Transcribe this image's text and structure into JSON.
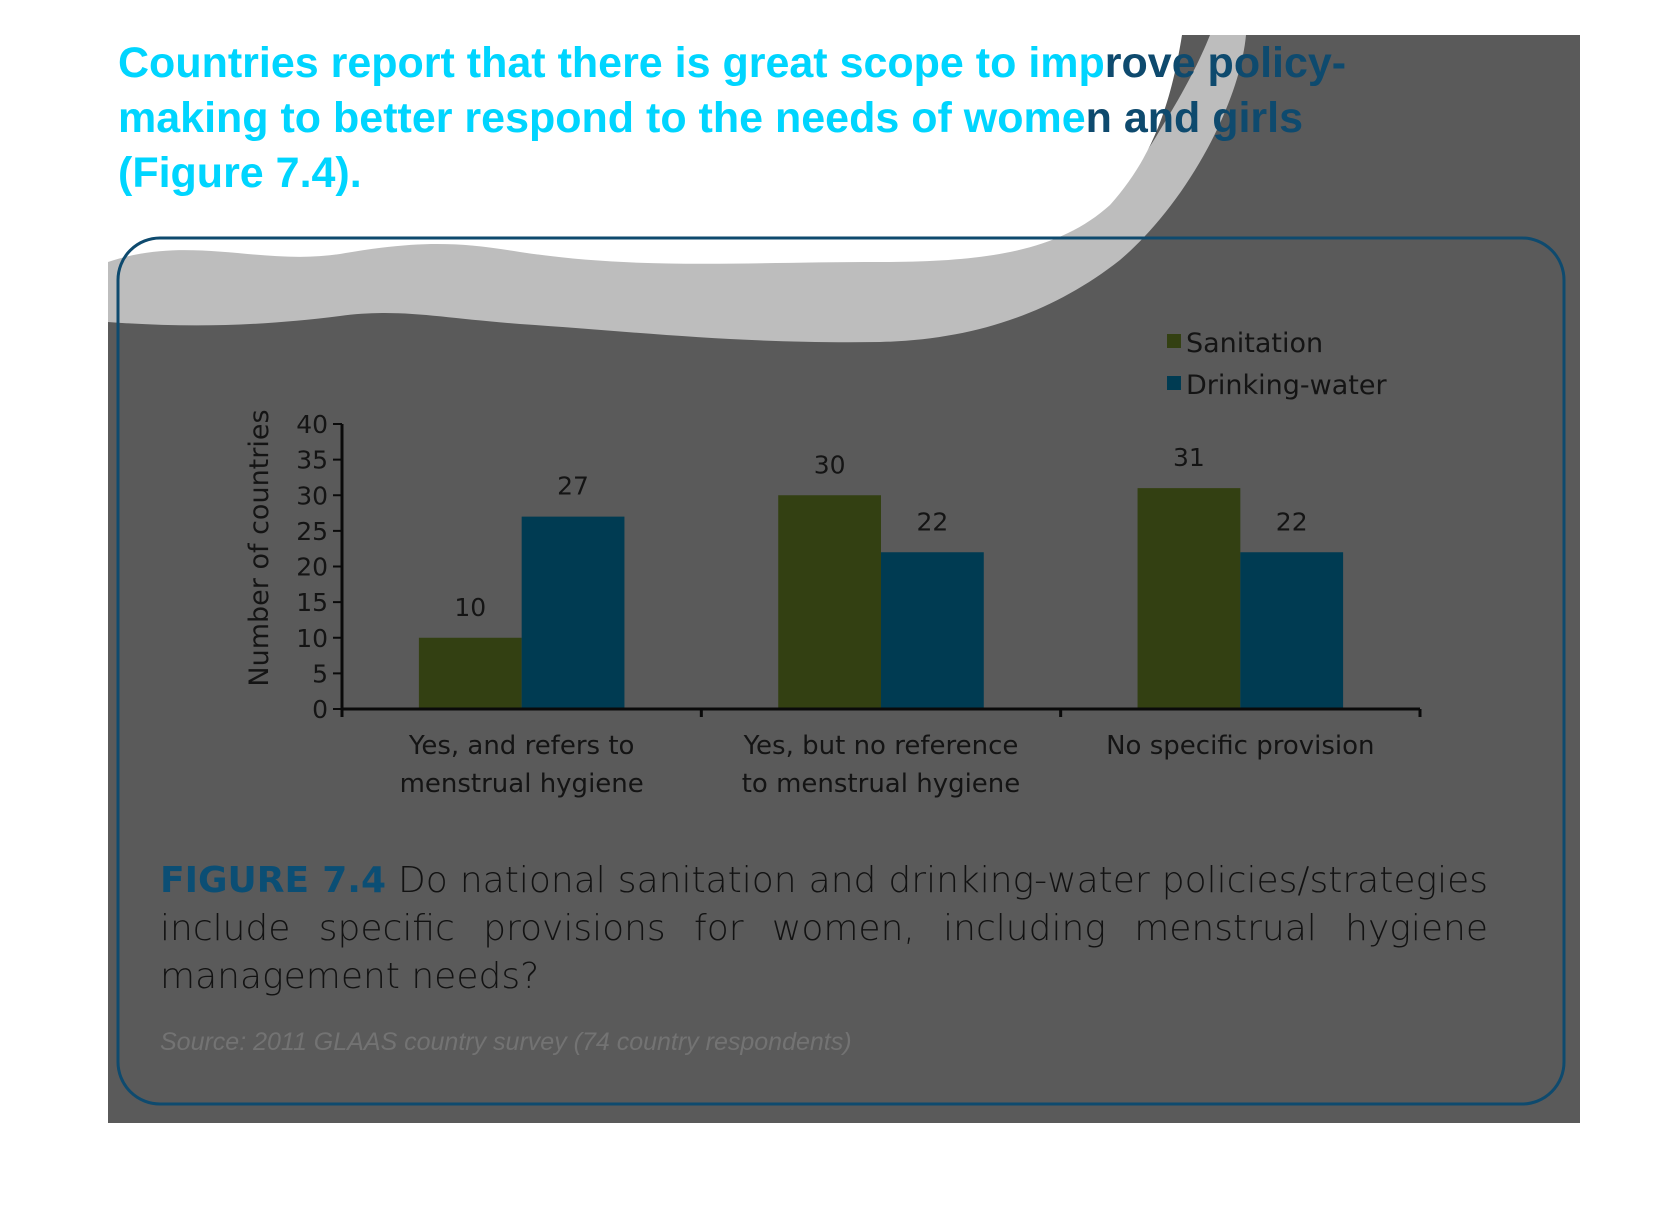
{
  "headline": {
    "line1_a": "Countries report that there is great scope to imp",
    "line1_b": "rove policy-",
    "line2_a": "making to better respond to the needs of wome",
    "line2_b": "n and girls",
    "line3": "(Figure 7.4)."
  },
  "chart_data": {
    "type": "bar",
    "ylabel": "Number of countries",
    "ylim": [
      0,
      40
    ],
    "yticks": [
      "0",
      "5",
      "10",
      "15",
      "20",
      "25",
      "30",
      "35",
      "40"
    ],
    "categories": [
      [
        "Yes, and refers to",
        "menstrual hygiene"
      ],
      [
        "Yes, but no reference",
        "to menstrual hygiene"
      ],
      [
        "No specific provision"
      ]
    ],
    "series": [
      {
        "name": "Sanitation",
        "values": [
          10,
          30,
          31
        ],
        "color": "#334012"
      },
      {
        "name": "Drinking-water",
        "values": [
          27,
          22,
          22
        ],
        "color": "#003b52"
      }
    ],
    "legend": "top-right",
    "grid": false
  },
  "caption": {
    "label": "FIGURE 7.4",
    "text": " Do national sanitation and drinking-water policies/strategies include specific provisions for women, including menstrual hygiene management needs?"
  },
  "source": "Source: 2011 GLAAS country survey (74 country respondents)",
  "colors": {
    "panel": "#5a5a5a",
    "wave": "#bdbdbd",
    "headline": "#00d5ff",
    "frame": "#0e4a6e",
    "figure_label": "#0b4e74"
  }
}
